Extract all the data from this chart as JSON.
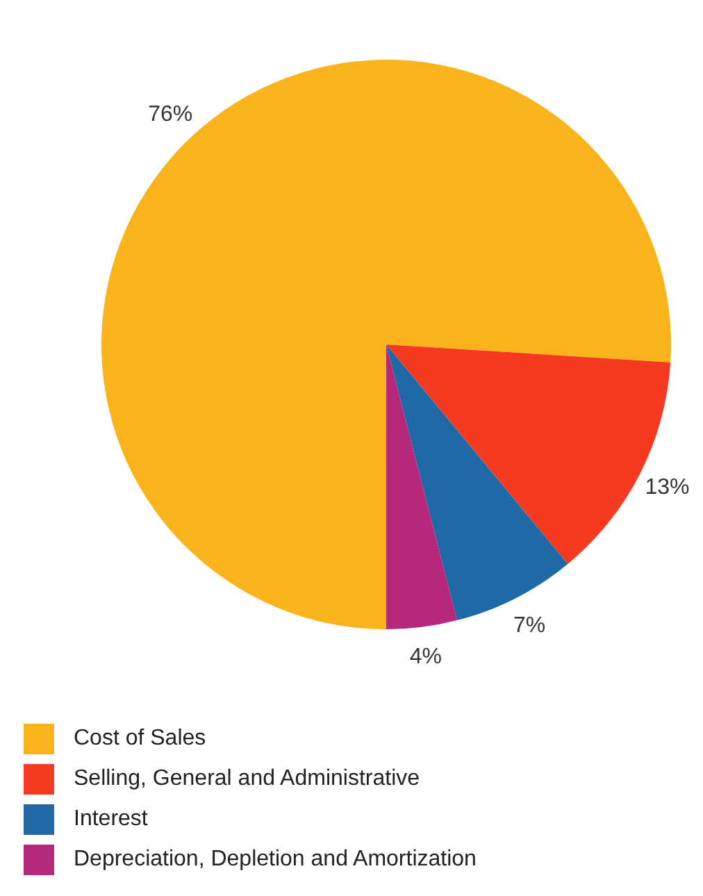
{
  "chart_data": {
    "type": "pie",
    "categories": [
      "Cost of Sales",
      "Selling, General and Administrative",
      "Interest",
      "Depreciation, Depletion and Amortization"
    ],
    "values": [
      76,
      13,
      7,
      4
    ],
    "colors": [
      "#f9b41c",
      "#f43b22",
      "#1f6aa6",
      "#b5287c"
    ],
    "value_labels": [
      "76%",
      "13%",
      "7%",
      "4%"
    ],
    "legend": "bottom"
  }
}
